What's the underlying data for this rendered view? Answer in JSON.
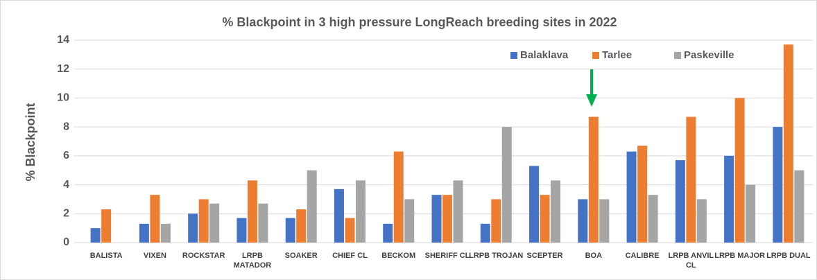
{
  "chart_data": {
    "type": "bar",
    "title": "% Blackpoint in 3 high pressure LongReach breeding sites in 2022",
    "y_label": "% Blackpoint",
    "categories": [
      "BALISTA",
      "VIXEN",
      "ROCKSTAR",
      "LRPB MATADOR",
      "SOAKER",
      "CHIEF CL",
      "BECKOM",
      "SHERIFF CL",
      "LRPB TROJAN",
      "SCEPTER",
      "BOA",
      "CALIBRE",
      "LRPB ANVIL CL",
      "LRPB MAJOR",
      "LRPB DUAL"
    ],
    "series": [
      {
        "name": "Balaklava",
        "color": "#4472c4",
        "values": [
          1.0,
          1.3,
          2.0,
          1.7,
          1.7,
          3.7,
          1.3,
          3.3,
          1.3,
          5.3,
          3.0,
          6.3,
          5.7,
          6.0,
          8.0
        ]
      },
      {
        "name": "Tarlee",
        "color": "#ed7d31",
        "values": [
          2.3,
          3.3,
          3.0,
          4.3,
          2.3,
          1.7,
          6.3,
          3.3,
          3.0,
          3.3,
          8.7,
          6.7,
          8.7,
          10.0,
          13.7
        ]
      },
      {
        "name": "Paskeville",
        "color": "#a5a5a5",
        "values": [
          0,
          1.3,
          2.7,
          2.7,
          5.0,
          4.3,
          3.0,
          4.3,
          8.0,
          4.3,
          3.0,
          3.3,
          3.0,
          4.0,
          5.0
        ]
      }
    ],
    "ylim": [
      0,
      14
    ],
    "yticks": [
      0,
      2,
      4,
      6,
      8,
      10,
      12,
      14
    ],
    "grid": true,
    "legend": "top"
  }
}
